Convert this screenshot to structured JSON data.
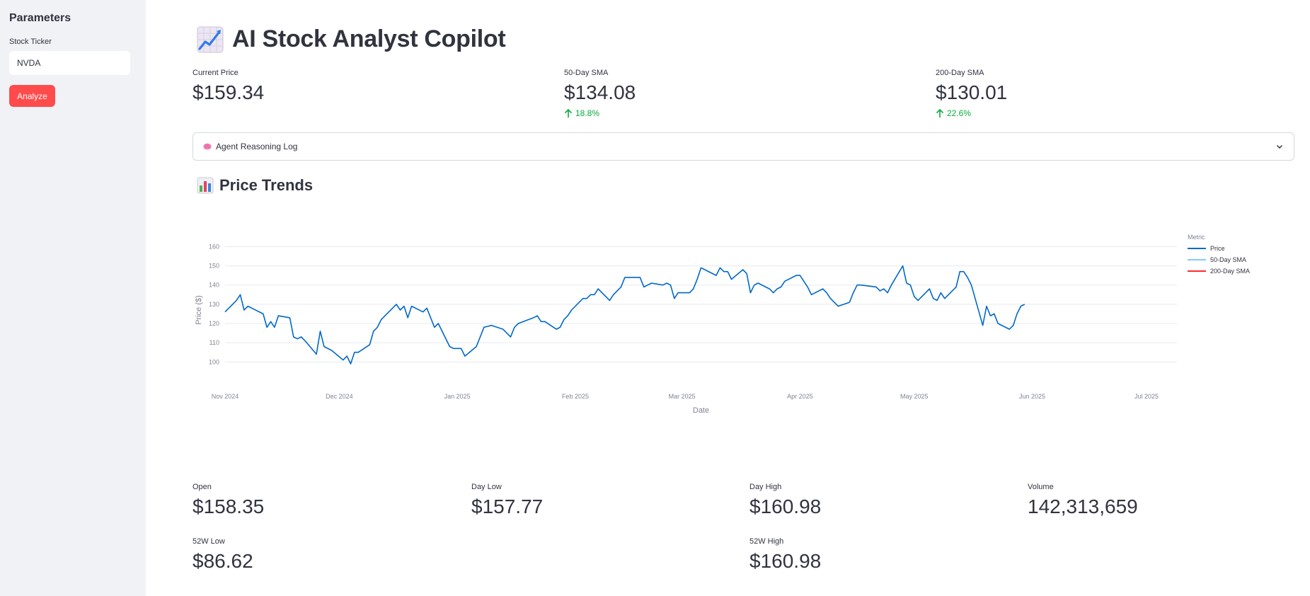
{
  "sidebar": {
    "title": "Parameters",
    "ticker_label": "Stock Ticker",
    "ticker_value": "NVDA",
    "analyze_label": "Analyze"
  },
  "header": {
    "title": "AI Stock Analyst Copilot",
    "title_icon": "chart-increasing-icon"
  },
  "top_metrics": [
    {
      "label": "Current Price",
      "value": "$159.34",
      "delta": ""
    },
    {
      "label": "50-Day SMA",
      "value": "$134.08",
      "delta": "18.8%"
    },
    {
      "label": "200-Day SMA",
      "value": "$130.01",
      "delta": "22.6%"
    }
  ],
  "expander": {
    "label": "Agent Reasoning Log",
    "icon": "brain-icon"
  },
  "section": {
    "title": "Price Trends",
    "icon": "bar-chart-icon"
  },
  "bottom_metrics": [
    {
      "label": "Open",
      "value": "$158.35"
    },
    {
      "label": "Day Low",
      "value": "$157.77"
    },
    {
      "label": "Day High",
      "value": "$160.98"
    },
    {
      "label": "Volume",
      "value": "142,313,659"
    },
    {
      "label": "52W Low",
      "value": "$86.62"
    },
    {
      "label": "52W High",
      "value": "$160.98"
    }
  ],
  "colors": {
    "accent": "#ff4b4b",
    "delta_up": "#09ab3b",
    "price": "#0068c9",
    "sma50": "#83c9ff",
    "sma200": "#ff2b2b"
  },
  "chart_data": {
    "type": "line",
    "title": "",
    "xlabel": "Date",
    "ylabel": "Price ($)",
    "legend_title": "Metric",
    "legend_position": "right",
    "grid": true,
    "ylim": [
      92,
      162
    ],
    "yticks": [
      100,
      110,
      120,
      130,
      140,
      150,
      160
    ],
    "x_start": "2024-11-01",
    "x_end": "2025-07-09",
    "xticks": [
      {
        "date": "2024-11-01",
        "label": "Nov 2024"
      },
      {
        "date": "2024-12-01",
        "label": "Dec 2024"
      },
      {
        "date": "2025-01-01",
        "label": "Jan 2025"
      },
      {
        "date": "2025-02-01",
        "label": "Feb 2025"
      },
      {
        "date": "2025-03-01",
        "label": "Mar 2025"
      },
      {
        "date": "2025-04-01",
        "label": "Apr 2025"
      },
      {
        "date": "2025-05-01",
        "label": "May 2025"
      },
      {
        "date": "2025-06-01",
        "label": "Jun 2025"
      },
      {
        "date": "2025-07-01",
        "label": "Jul 2025"
      }
    ],
    "series": [
      {
        "name": "Price",
        "color": "#0068c9",
        "points": [
          [
            "2024-11-01",
            126
          ],
          [
            "2024-11-04",
            132
          ],
          [
            "2024-11-05",
            135
          ],
          [
            "2024-11-06",
            127
          ],
          [
            "2024-11-07",
            129
          ],
          [
            "2024-11-08",
            128
          ],
          [
            "2024-11-11",
            125
          ],
          [
            "2024-11-12",
            118
          ],
          [
            "2024-11-13",
            121
          ],
          [
            "2024-11-14",
            118
          ],
          [
            "2024-11-15",
            124
          ],
          [
            "2024-11-18",
            123
          ],
          [
            "2024-11-19",
            113
          ],
          [
            "2024-11-20",
            112
          ],
          [
            "2024-11-21",
            113
          ],
          [
            "2024-11-22",
            111
          ],
          [
            "2024-11-25",
            104
          ],
          [
            "2024-11-26",
            116
          ],
          [
            "2024-11-27",
            108
          ],
          [
            "2024-11-29",
            106
          ],
          [
            "2024-12-02",
            101
          ],
          [
            "2024-12-03",
            103
          ],
          [
            "2024-12-04",
            99
          ],
          [
            "2024-12-05",
            105
          ],
          [
            "2024-12-06",
            105
          ],
          [
            "2024-12-09",
            109
          ],
          [
            "2024-12-10",
            116
          ],
          [
            "2024-12-11",
            118
          ],
          [
            "2024-12-12",
            122
          ],
          [
            "2024-12-13",
            124
          ],
          [
            "2024-12-16",
            130
          ],
          [
            "2024-12-17",
            127
          ],
          [
            "2024-12-18",
            129
          ],
          [
            "2024-12-19",
            123
          ],
          [
            "2024-12-20",
            129
          ],
          [
            "2024-12-23",
            126
          ],
          [
            "2024-12-24",
            128
          ],
          [
            "2024-12-26",
            118
          ],
          [
            "2024-12-27",
            120
          ],
          [
            "2024-12-30",
            108
          ],
          [
            "2024-12-31",
            107
          ],
          [
            "2025-01-02",
            107
          ],
          [
            "2025-01-03",
            103
          ],
          [
            "2025-01-06",
            108
          ],
          [
            "2025-01-07",
            113
          ],
          [
            "2025-01-08",
            118
          ],
          [
            "2025-01-10",
            119
          ],
          [
            "2025-01-13",
            117
          ],
          [
            "2025-01-14",
            115
          ],
          [
            "2025-01-15",
            113
          ],
          [
            "2025-01-16",
            118
          ],
          [
            "2025-01-17",
            120
          ],
          [
            "2025-01-21",
            123
          ],
          [
            "2025-01-22",
            124
          ],
          [
            "2025-01-23",
            121
          ],
          [
            "2025-01-24",
            121
          ],
          [
            "2025-01-27",
            117
          ],
          [
            "2025-01-28",
            118
          ],
          [
            "2025-01-29",
            122
          ],
          [
            "2025-01-30",
            124
          ],
          [
            "2025-01-31",
            127
          ],
          [
            "2025-02-03",
            133
          ],
          [
            "2025-02-04",
            133
          ],
          [
            "2025-02-05",
            135
          ],
          [
            "2025-02-06",
            135
          ],
          [
            "2025-02-07",
            138
          ],
          [
            "2025-02-10",
            132
          ],
          [
            "2025-02-11",
            135
          ],
          [
            "2025-02-12",
            137
          ],
          [
            "2025-02-13",
            139
          ],
          [
            "2025-02-14",
            144
          ],
          [
            "2025-02-18",
            144
          ],
          [
            "2025-02-19",
            139
          ],
          [
            "2025-02-20",
            140
          ],
          [
            "2025-02-21",
            141
          ],
          [
            "2025-02-24",
            140
          ],
          [
            "2025-02-25",
            141
          ],
          [
            "2025-02-26",
            140
          ],
          [
            "2025-02-27",
            133
          ],
          [
            "2025-02-28",
            136
          ],
          [
            "2025-03-03",
            136
          ],
          [
            "2025-03-04",
            138
          ],
          [
            "2025-03-05",
            143
          ],
          [
            "2025-03-06",
            149
          ],
          [
            "2025-03-07",
            148
          ],
          [
            "2025-03-10",
            145
          ],
          [
            "2025-03-11",
            149
          ],
          [
            "2025-03-12",
            147
          ],
          [
            "2025-03-13",
            147
          ],
          [
            "2025-03-14",
            143
          ],
          [
            "2025-03-17",
            148
          ],
          [
            "2025-03-18",
            146
          ],
          [
            "2025-03-19",
            136
          ],
          [
            "2025-03-20",
            140
          ],
          [
            "2025-03-21",
            141
          ],
          [
            "2025-03-24",
            138
          ],
          [
            "2025-03-25",
            136
          ],
          [
            "2025-03-26",
            138
          ],
          [
            "2025-03-27",
            139
          ],
          [
            "2025-03-28",
            142
          ],
          [
            "2025-03-31",
            145
          ],
          [
            "2025-04-01",
            145
          ],
          [
            "2025-04-02",
            142
          ],
          [
            "2025-04-03",
            139
          ],
          [
            "2025-04-04",
            135
          ],
          [
            "2025-04-07",
            138
          ],
          [
            "2025-04-08",
            136
          ],
          [
            "2025-04-09",
            133
          ],
          [
            "2025-04-10",
            131
          ],
          [
            "2025-04-11",
            129
          ],
          [
            "2025-04-14",
            131
          ],
          [
            "2025-04-15",
            136
          ],
          [
            "2025-04-16",
            140
          ],
          [
            "2025-04-17",
            140
          ],
          [
            "2025-04-21",
            139
          ],
          [
            "2025-04-22",
            137
          ],
          [
            "2025-04-23",
            138
          ],
          [
            "2025-04-24",
            136
          ],
          [
            "2025-04-25",
            140
          ],
          [
            "2025-04-28",
            150
          ],
          [
            "2025-04-29",
            141
          ],
          [
            "2025-04-30",
            140
          ],
          [
            "2025-05-01",
            134
          ],
          [
            "2025-05-02",
            132
          ],
          [
            "2025-05-05",
            138
          ],
          [
            "2025-05-06",
            133
          ],
          [
            "2025-05-07",
            132
          ],
          [
            "2025-05-08",
            136
          ],
          [
            "2025-05-09",
            133
          ],
          [
            "2025-05-12",
            139
          ],
          [
            "2025-05-13",
            147
          ],
          [
            "2025-05-14",
            147
          ],
          [
            "2025-05-15",
            144
          ],
          [
            "2025-05-16",
            140
          ],
          [
            "2025-05-19",
            119
          ],
          [
            "2025-05-20",
            129
          ],
          [
            "2025-05-21",
            124
          ],
          [
            "2025-05-22",
            125
          ],
          [
            "2025-05-23",
            120
          ],
          [
            "2025-05-26",
            117
          ],
          [
            "2025-05-27",
            119
          ],
          [
            "2025-05-28",
            125
          ],
          [
            "2025-05-29",
            129
          ],
          [
            "2025-05-30",
            130
          ]
        ]
      },
      {
        "name": "50-Day SMA",
        "color": "#83c9ff",
        "points": []
      },
      {
        "name": "200-Day SMA",
        "color": "#ff2b2b",
        "points": []
      }
    ]
  }
}
